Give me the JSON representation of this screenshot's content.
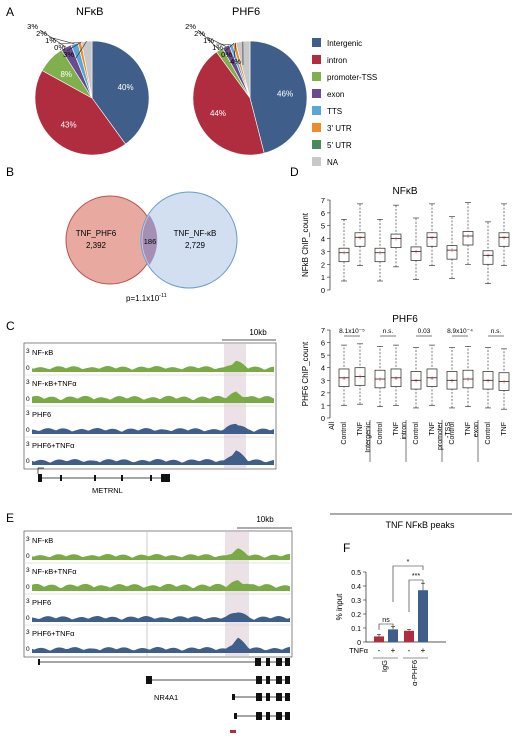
{
  "panels": {
    "A": "A",
    "B": "B",
    "C": "C",
    "D": "D",
    "E": "E",
    "F": "F"
  },
  "pies": {
    "titles": [
      "NFκB",
      "PHF6"
    ],
    "legend": [
      "Intergenic",
      "intron",
      "promoter-TSS",
      "exon",
      "TTS",
      "3' UTR",
      "5' UTR",
      "NA"
    ],
    "colors": [
      "#3f5f8a",
      "#b02d3f",
      "#7fb04d",
      "#6b4a8e",
      "#5aa7d6",
      "#ee8c2d",
      "#4a8a5a",
      "#c8c8c8"
    ],
    "nfkb_labels": [
      "40%",
      "43%",
      "8%",
      "3%",
      "2%",
      "1%",
      "0%",
      "3%"
    ],
    "phf6_labels": [
      "46%",
      "44%",
      "2%",
      "2%",
      "1%",
      "1%",
      "0%",
      "4%"
    ]
  },
  "chart_data": [
    {
      "type": "pie",
      "title": "NFκB",
      "categories": [
        "Intergenic",
        "intron",
        "promoter-TSS",
        "exon",
        "TTS",
        "3' UTR",
        "5' UTR",
        "NA"
      ],
      "values": [
        40,
        43,
        8,
        3,
        2,
        1,
        0,
        3
      ]
    },
    {
      "type": "pie",
      "title": "PHF6",
      "categories": [
        "Intergenic",
        "intron",
        "promoter-TSS",
        "exon",
        "TTS",
        "3' UTR",
        "5' UTR",
        "NA"
      ],
      "values": [
        46,
        44,
        2,
        2,
        1,
        1,
        0,
        4
      ]
    },
    {
      "type": "box",
      "title": "NFκB",
      "ylabel": "NFkB ChIP_count",
      "ylim": [
        0,
        7
      ],
      "yticks": [
        "0",
        "1",
        "2",
        "3",
        "4",
        "5",
        "6",
        "7"
      ],
      "groups": [
        "All",
        "Intergenic",
        "intron",
        "promoter-TSS",
        "exon"
      ],
      "conditions": [
        "Control",
        "TNF"
      ],
      "medians": [
        [
          2.9,
          4.1
        ],
        [
          2.9,
          4.0
        ],
        [
          3.0,
          4.1
        ],
        [
          3.1,
          4.2
        ],
        [
          2.7,
          4.1
        ]
      ]
    },
    {
      "type": "box",
      "title": "PHF6",
      "ylabel": "PHF6 ChIP_count",
      "ylim": [
        0,
        7
      ],
      "yticks": [
        "0",
        "1",
        "2",
        "3",
        "4",
        "5",
        "6",
        "7"
      ],
      "groups": [
        "All",
        "Intergenic",
        "intron",
        "promoter-TSS",
        "exon"
      ],
      "conditions": [
        "Control",
        "TNF"
      ],
      "pvalues": [
        "8.1x10⁻⁵",
        "n.s.",
        "0.03",
        "8.9x10⁻⁴",
        "n.s."
      ],
      "medians": [
        [
          3.2,
          3.3
        ],
        [
          3.1,
          3.2
        ],
        [
          3.0,
          3.2
        ],
        [
          3.0,
          3.1
        ],
        [
          3.0,
          2.9
        ]
      ]
    },
    {
      "type": "bar",
      "ylabel": "% input",
      "ylim": [
        0,
        0.5
      ],
      "yticks": [
        "0",
        "0.1",
        "0.2",
        "0.3",
        "0.4",
        "0.5"
      ],
      "categories": [
        "IgG -",
        "IgG +",
        "α-PHF6 -",
        "α-PHF6 +"
      ],
      "values": [
        0.04,
        0.09,
        0.08,
        0.37
      ],
      "errors": [
        0.015,
        0.02,
        0.01,
        0.05
      ]
    }
  ],
  "venn": {
    "left_label": "TNF_PHF6",
    "left_count": "2,392",
    "overlap": "186",
    "right_label": "TNF_NF-κB",
    "right_count": "2,729",
    "pvalue": "p=1.1x10",
    "pvalue_exp": "-11"
  },
  "boxplot": {
    "xlabels": [
      "Control",
      "TNF"
    ],
    "group_labels": [
      "All",
      "Intergenic",
      "intron",
      "promoter\n-TSS",
      "exon"
    ],
    "footer": "TNF NFκB peaks"
  },
  "tracksC": {
    "scale": "10kb",
    "tracks": [
      "NF-κB",
      "NF-κB+TNFα",
      "PHF6",
      "PHF6+TNFα"
    ],
    "ymax": "3",
    "ymin": "0",
    "gene": "METRNL"
  },
  "tracksE": {
    "scale": "10kb",
    "tracks": [
      "NF-κB",
      "NF-κB+TNFα",
      "PHF6",
      "PHF6+TNFα"
    ],
    "ymax": "3",
    "ymin": "0",
    "gene": "NR4A1"
  },
  "barF": {
    "ylabel": "% input",
    "yticks": [
      "0",
      "0.1",
      "0.2",
      "0.3",
      "0.4",
      "0.5"
    ],
    "tnf_label": "TNFα",
    "signs": [
      "-",
      "+",
      "-",
      "+"
    ],
    "groups": [
      "IgG",
      "α-PHF6"
    ],
    "sig": [
      "ns",
      "***",
      "*"
    ]
  }
}
